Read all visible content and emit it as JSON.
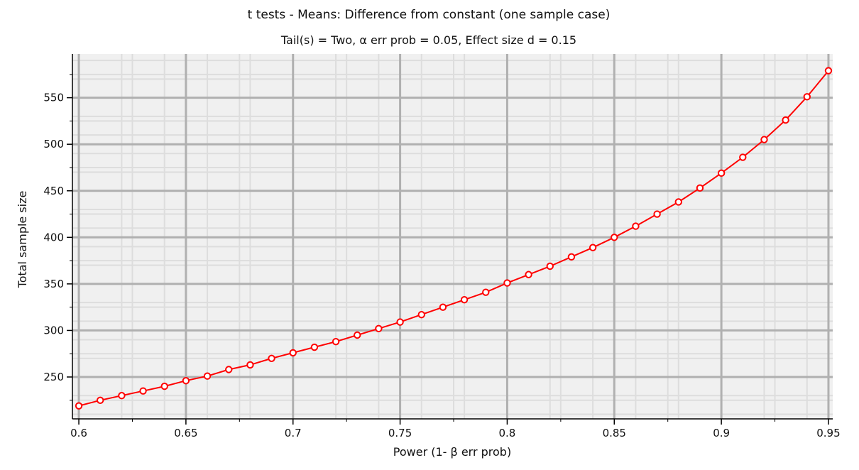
{
  "chart_data": {
    "type": "line",
    "title": "t tests -  Means: Difference from constant (one sample case)",
    "subtitle": "Tail(s) =  Two, α err prob  =  0.05, Effect size d  =  0.15",
    "xlabel": "Power (1- β err prob)",
    "ylabel": "Total sample size",
    "xlim": [
      0.597,
      0.952
    ],
    "ylim": [
      205,
      597
    ],
    "x_ticks": [
      {
        "value": 0.6,
        "label": "0.6"
      },
      {
        "value": 0.65,
        "label": "0.65"
      },
      {
        "value": 0.7,
        "label": "0.7"
      },
      {
        "value": 0.75,
        "label": "0.75"
      },
      {
        "value": 0.8,
        "label": "0.8"
      },
      {
        "value": 0.85,
        "label": "0.85"
      },
      {
        "value": 0.9,
        "label": "0.9"
      },
      {
        "value": 0.95,
        "label": "0.95"
      }
    ],
    "y_ticks": [
      {
        "value": 250,
        "label": "250"
      },
      {
        "value": 300,
        "label": "300"
      },
      {
        "value": 350,
        "label": "350"
      },
      {
        "value": 400,
        "label": "400"
      },
      {
        "value": 450,
        "label": "450"
      },
      {
        "value": 500,
        "label": "500"
      },
      {
        "value": 550,
        "label": "550"
      }
    ],
    "x_minor_step": 0.01,
    "y_minor_step": 10,
    "grid": true,
    "colors": {
      "line": "#ff0000",
      "marker_fill": "#ffffff",
      "plot_background": "#f0f0f0",
      "major_grid": "#b0b0b0",
      "minor_grid": "#dddddd",
      "axis": "#000000"
    },
    "series": [
      {
        "x": [
          0.6,
          0.61,
          0.62,
          0.63,
          0.64,
          0.65,
          0.66,
          0.67,
          0.68,
          0.69,
          0.7,
          0.71,
          0.72,
          0.73,
          0.74,
          0.75,
          0.76,
          0.77,
          0.78,
          0.79,
          0.8,
          0.81,
          0.82,
          0.83,
          0.84,
          0.85,
          0.86,
          0.87,
          0.88,
          0.89,
          0.9,
          0.91,
          0.92,
          0.93,
          0.94,
          0.95
        ],
        "y": [
          219,
          225,
          230,
          235,
          240,
          246,
          251,
          258,
          263,
          270,
          276,
          282,
          288,
          295,
          302,
          309,
          317,
          325,
          333,
          341,
          351,
          360,
          369,
          379,
          389,
          400,
          412,
          425,
          438,
          453,
          469,
          486,
          505,
          526,
          551,
          579
        ]
      }
    ]
  }
}
